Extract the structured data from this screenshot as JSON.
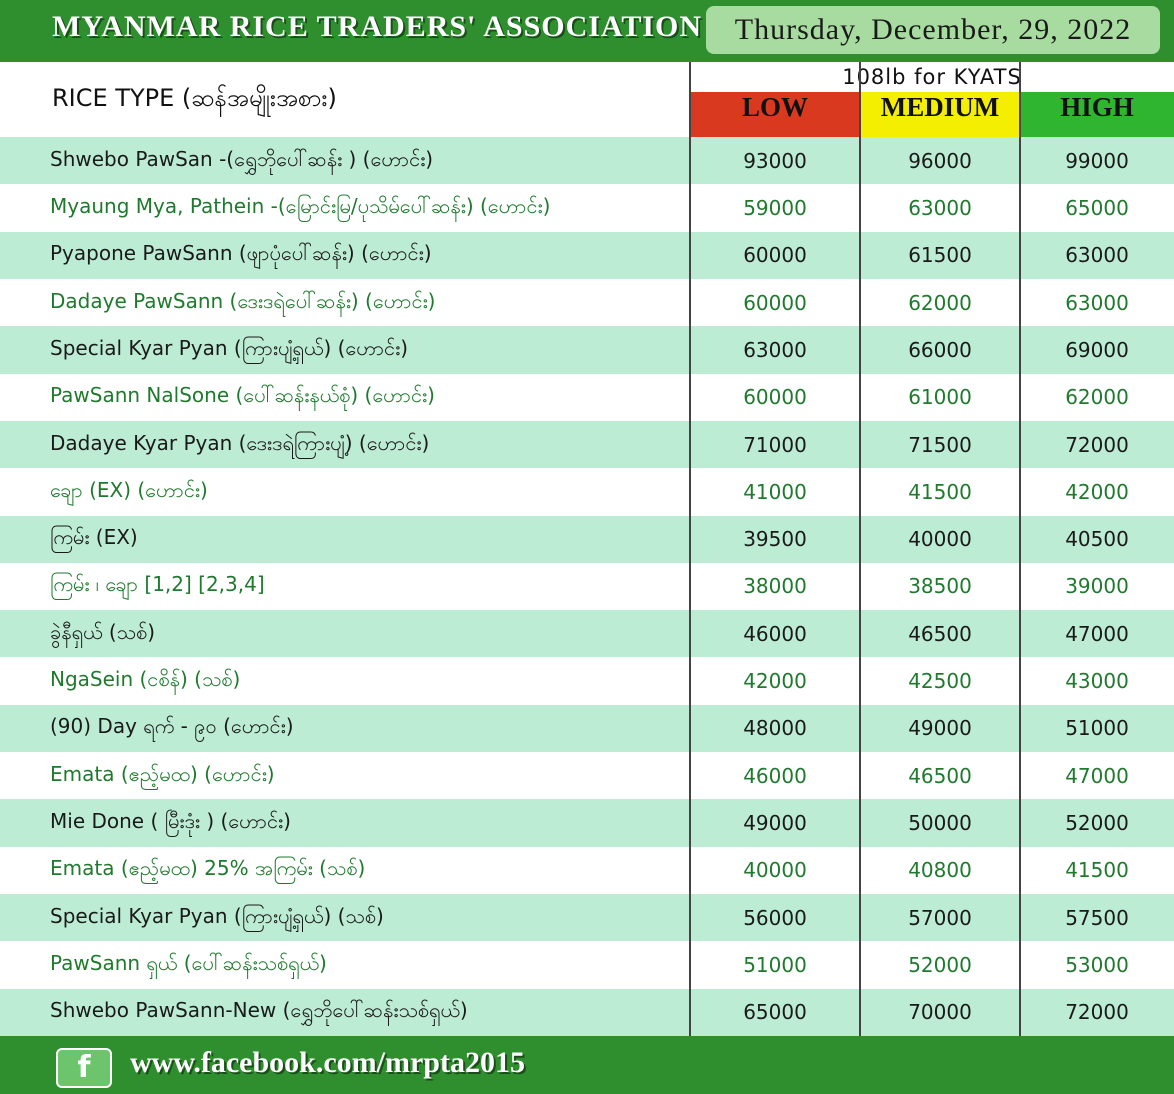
{
  "header": {
    "title": "MYANMAR RICE TRADERS' ASSOCIATION",
    "date": "Thursday, December, 29, 2022"
  },
  "table": {
    "unit_note": "108lb for KYATS",
    "columns": [
      "RICE TYPE (ဆန်အမျိုးအစား)",
      "LOW",
      "MEDIUM",
      "HIGH"
    ],
    "rows": [
      [
        "Shwebo PawSan -(ရွှေဘိုပေါ်ဆန်း ) (ဟောင်း)",
        93000,
        96000,
        99000
      ],
      [
        "Myaung Mya, Pathein -(မြောင်းမြ/ပုသိမ်ပေါ်ဆန်း) (ဟောင်း)",
        59000,
        63000,
        65000
      ],
      [
        "Pyapone PawSann (ဖျာပုံပေါ်ဆန်း) (ဟောင်း)",
        60000,
        61500,
        63000
      ],
      [
        "Dadaye PawSann (ဒေးဒရဲပေါ်ဆန်း) (ဟောင်း)",
        60000,
        62000,
        63000
      ],
      [
        "Special Kyar Pyan (ကြားပျံ့ရှယ်) (ဟောင်း)",
        63000,
        66000,
        69000
      ],
      [
        "PawSann NalSone (ပေါ်ဆန်းနယ်စုံ) (ဟောင်း)",
        60000,
        61000,
        62000
      ],
      [
        "Dadaye Kyar Pyan (ဒေးဒရဲကြားပျံ့) (ဟောင်း)",
        71000,
        71500,
        72000
      ],
      [
        "ချော (EX) (ဟောင်း)",
        41000,
        41500,
        42000
      ],
      [
        "ကြမ်း (EX)",
        39500,
        40000,
        40500
      ],
      [
        "ကြမ်း ၊ ချော [1,2] [2,3,4]",
        38000,
        38500,
        39000
      ],
      [
        "ခွဲနီရှယ် (သစ်)",
        46000,
        46500,
        47000
      ],
      [
        "NgaSein (ငစိန်) (သစ်)",
        42000,
        42500,
        43000
      ],
      [
        "(90) Day ရက် - ၉၀ (ဟောင်း)",
        48000,
        49000,
        51000
      ],
      [
        "Emata (ဧည့်မထ) (ဟောင်း)",
        46000,
        46500,
        47000
      ],
      [
        "Mie Done ( မြီးဒုံး ) (ဟောင်း)",
        49000,
        50000,
        52000
      ],
      [
        "Emata (ဧည့်မထ) 25% အကြမ်း (သစ်)",
        40000,
        40800,
        41500
      ],
      [
        "Special Kyar Pyan (ကြားပျံ့ရှယ်) (သစ်)",
        56000,
        57000,
        57500
      ],
      [
        "PawSann ရှယ် (ပေါ်ဆန်းသစ်ရှယ်)",
        51000,
        52000,
        53000
      ],
      [
        "Shwebo PawSann-New (ရွှေဘိုပေါ်ဆန်းသစ်ရှယ်)",
        65000,
        70000,
        72000
      ]
    ]
  },
  "footer": {
    "url": "www.facebook.com/mrpta2015"
  }
}
